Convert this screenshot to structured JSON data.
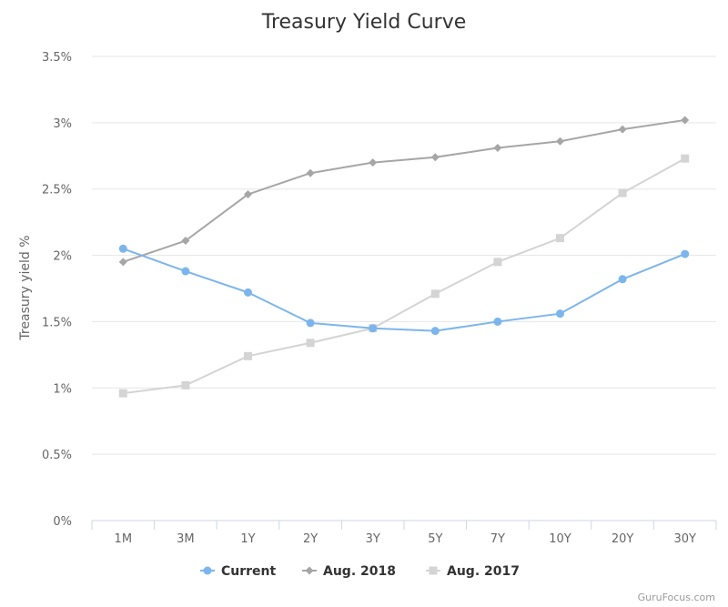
{
  "chart_data": {
    "type": "line",
    "title": "Treasury Yield Curve",
    "ylabel": "Treasury yield %",
    "xlabel": "",
    "categories": [
      "1M",
      "3M",
      "1Y",
      "2Y",
      "3Y",
      "5Y",
      "7Y",
      "10Y",
      "20Y",
      "30Y"
    ],
    "ylim": [
      0,
      3.5
    ],
    "yticks": [
      0,
      0.5,
      1,
      1.5,
      2,
      2.5,
      3,
      3.5
    ],
    "ytick_labels": [
      "0%",
      "0.5%",
      "1%",
      "1.5%",
      "2%",
      "2.5%",
      "3%",
      "3.5%"
    ],
    "grid": true,
    "legend_position": "bottom",
    "series": [
      {
        "name": "Current",
        "color": "#7cb5ec",
        "marker": "circle",
        "values": [
          2.05,
          1.88,
          1.72,
          1.49,
          1.45,
          1.43,
          1.5,
          1.56,
          1.82,
          2.01
        ]
      },
      {
        "name": "Aug. 2018",
        "color": "#a6a6a6",
        "marker": "diamond",
        "values": [
          1.95,
          2.11,
          2.46,
          2.62,
          2.7,
          2.74,
          2.81,
          2.86,
          2.95,
          3.02
        ]
      },
      {
        "name": "Aug. 2017",
        "color": "#d4d4d4",
        "marker": "square",
        "values": [
          0.96,
          1.02,
          1.24,
          1.34,
          1.45,
          1.71,
          1.95,
          2.13,
          2.47,
          2.73
        ]
      }
    ]
  },
  "credit": "GuruFocus.com"
}
